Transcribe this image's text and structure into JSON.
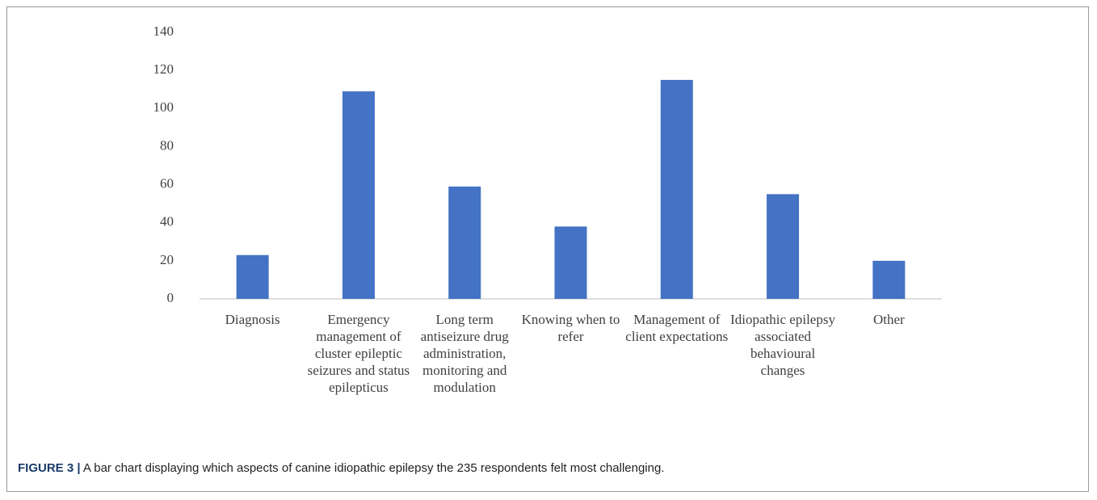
{
  "chart_data": {
    "type": "bar",
    "caption_label": "FIGURE 3 |",
    "caption": "A bar chart displaying which aspects of canine idiopathic epilepsy the 235 respondents felt most challenging.",
    "categories": [
      "Diagnosis",
      "Emergency management of cluster epileptic seizures and status epilepticus",
      "Long term antiseizure drug administration, monitoring and modulation",
      "Knowing when to refer",
      "Management of client expectations",
      "Idiopathic epilepsy associated behavioural changes",
      "Other"
    ],
    "values": [
      23,
      109,
      59,
      38,
      115,
      55,
      20
    ],
    "color": "#4472c4",
    "ylim": [
      0,
      140
    ],
    "yticks": [
      0,
      20,
      40,
      60,
      80,
      100,
      120,
      140
    ],
    "grid": false
  }
}
